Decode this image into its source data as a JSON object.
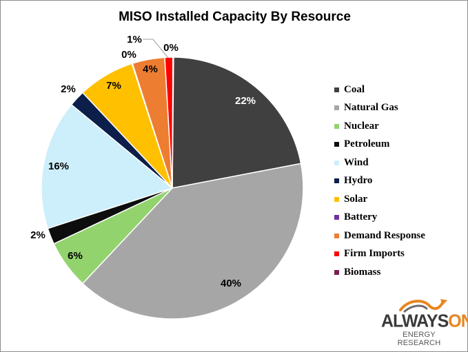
{
  "chart_data": {
    "type": "pie",
    "title": "MISO Installed Capacity By Resource",
    "categories": [
      "Coal",
      "Natural Gas",
      "Nuclear",
      "Petroleum",
      "Wind",
      "Hydro",
      "Solar",
      "Battery",
      "Demand Response",
      "Firm Imports",
      "Biomass"
    ],
    "values": [
      22,
      40,
      6,
      2,
      16,
      2,
      7,
      0,
      4,
      1,
      0
    ],
    "labels": [
      "22%",
      "40%",
      "6%",
      "2%",
      "16%",
      "2%",
      "7%",
      "0%",
      "4%",
      "1%",
      "0%"
    ],
    "colors": [
      "#404040",
      "#a6a6a6",
      "#92d36e",
      "#0d0d0d",
      "#cdeefb",
      "#0c1e4a",
      "#ffc000",
      "#7030a0",
      "#ed7d31",
      "#ff0000",
      "#7b1f4f"
    ],
    "legend_position": "right"
  },
  "logo": {
    "main_left": "ALWAYS",
    "main_right": "ON",
    "sub": "ENERGY RESEARCH",
    "accent": "#e8851e"
  }
}
